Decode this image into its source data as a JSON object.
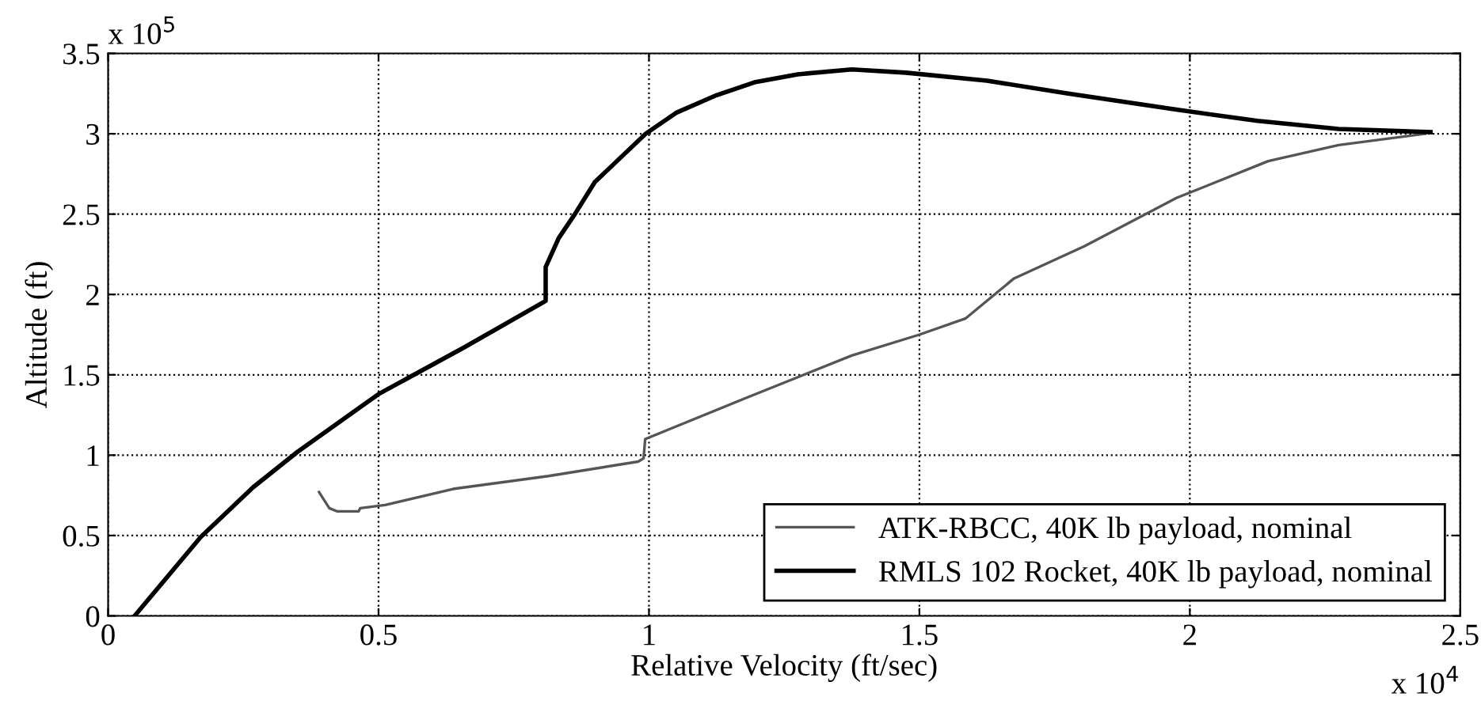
{
  "chart_data": {
    "type": "line",
    "xlabel": "Relative Velocity (ft/sec)",
    "ylabel": "Altitude (ft)",
    "xlim": [
      0,
      2.5
    ],
    "xticks": [
      0,
      0.5,
      1,
      1.5,
      2,
      2.5
    ],
    "ylim": [
      0,
      3.5
    ],
    "yticks": [
      0,
      0.5,
      1,
      1.5,
      2,
      2.5,
      3,
      3.5
    ],
    "grid": true,
    "legend": "bottom right",
    "line_style": "solid",
    "marker": "none",
    "annotations": [
      "x 10$^{5}$",
      "x 10$^{4}$"
    ],
    "series": [
      {
        "name": "ATK-RBCC, 40K lb payload, nominal",
        "color": "#555555",
        "x": [
          0.39,
          0.409,
          0.424,
          0.463,
          0.466,
          0.512,
          0.638,
          0.814,
          0.98,
          0.99,
          0.993,
          1.175,
          1.375,
          1.5,
          1.585,
          1.675,
          1.805,
          1.975,
          2.145,
          2.275,
          2.435
        ],
        "values": [
          0.77,
          0.67,
          0.65,
          0.65,
          0.67,
          0.69,
          0.79,
          0.87,
          0.96,
          0.98,
          1.1,
          1.35,
          1.62,
          1.75,
          1.85,
          2.1,
          2.3,
          2.6,
          2.83,
          2.93,
          3.0
        ]
      },
      {
        "name": "RMLS 102 Rocket, 40K lb payload, nominal",
        "color": "#000000",
        "x": [
          0.049,
          0.171,
          0.268,
          0.35,
          0.5,
          0.658,
          0.809,
          0.809,
          0.833,
          0.863,
          0.9,
          0.994,
          1.05,
          1.125,
          1.195,
          1.275,
          1.375,
          1.475,
          1.625,
          1.775,
          1.975,
          2.125,
          2.275,
          2.445
        ],
        "values": [
          0,
          0.49,
          0.8,
          1.02,
          1.38,
          1.67,
          1.96,
          2.17,
          2.35,
          2.5,
          2.7,
          3.0,
          3.13,
          3.24,
          3.32,
          3.37,
          3.4,
          3.38,
          3.33,
          3.25,
          3.15,
          3.08,
          3.03,
          3.01
        ]
      }
    ]
  }
}
